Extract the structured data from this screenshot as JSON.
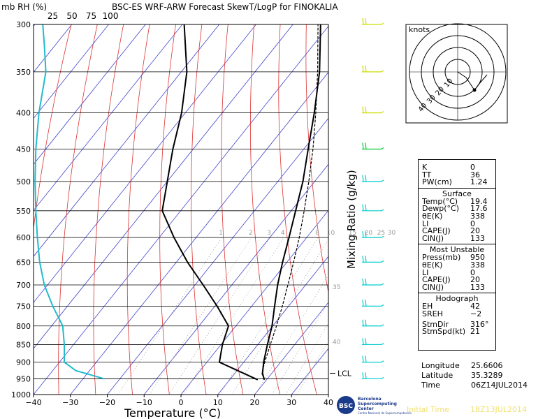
{
  "chart_data": {
    "type": "skewt",
    "title": "BSC-ES WRF-ARW Forecast SkewT/LogP for FINOKALIA",
    "left_header": "mb RH (%)",
    "rh_ticks": [
      "25",
      "50",
      "75",
      "100"
    ],
    "xlabel": "Temperature (°C)",
    "ylabel": "Mixing Ratio (g/kg)",
    "x_ticks": [
      "−40",
      "−30",
      "−20",
      "−10",
      "0",
      "10",
      "20",
      "30",
      "40"
    ],
    "pressure_levels": [
      300,
      350,
      400,
      450,
      500,
      550,
      600,
      650,
      700,
      750,
      800,
      850,
      900,
      950,
      1000
    ],
    "pressure_labels": [
      "300",
      "350",
      "400",
      "450",
      "500",
      "550",
      "600",
      "650",
      "700",
      "750",
      "800",
      "850",
      "900",
      "950",
      "1000"
    ],
    "mixing_ratio_labels": [
      "1",
      "2",
      "3",
      "4",
      "8",
      "10",
      "15",
      "20",
      "25",
      "30"
    ],
    "theta_e_labels": [
      {
        "text": "35",
        "pressure": 705
      },
      {
        "text": "40",
        "pressure": 842
      }
    ],
    "lcl_label": "LCL",
    "lcl_pressure": 933,
    "temperature_profile": [
      {
        "p": 953,
        "t": 19.4
      },
      {
        "p": 933,
        "t": 17.5
      },
      {
        "p": 900,
        "t": 15.4
      },
      {
        "p": 850,
        "t": 12.6
      },
      {
        "p": 800,
        "t": 9.8
      },
      {
        "p": 750,
        "t": 6.2
      },
      {
        "p": 700,
        "t": 2.4
      },
      {
        "p": 650,
        "t": -1.2
      },
      {
        "p": 600,
        "t": -4.8
      },
      {
        "p": 550,
        "t": -8.8
      },
      {
        "p": 500,
        "t": -13.2
      },
      {
        "p": 450,
        "t": -18.8
      },
      {
        "p": 400,
        "t": -25.0
      },
      {
        "p": 350,
        "t": -32.5
      },
      {
        "p": 300,
        "t": -42.5
      }
    ],
    "dewpoint_profile": [
      {
        "p": 953,
        "t": 17.6
      },
      {
        "p": 900,
        "t": 3.4
      },
      {
        "p": 850,
        "t": 0.4
      },
      {
        "p": 800,
        "t": -2.0
      },
      {
        "p": 750,
        "t": -9.4
      },
      {
        "p": 700,
        "t": -17.8
      },
      {
        "p": 650,
        "t": -27.0
      },
      {
        "p": 600,
        "t": -36.0
      },
      {
        "p": 550,
        "t": -45.0
      },
      {
        "p": 500,
        "t": -50.0
      },
      {
        "p": 450,
        "t": -55.5
      },
      {
        "p": 400,
        "t": -61.0
      },
      {
        "p": 350,
        "t": -68.5
      },
      {
        "p": 300,
        "t": -79.5
      }
    ],
    "parcel_profile": [
      {
        "p": 953,
        "t": 19.4
      },
      {
        "p": 933,
        "t": 17.3
      },
      {
        "p": 900,
        "t": 15.7
      },
      {
        "p": 850,
        "t": 13.4
      },
      {
        "p": 800,
        "t": 11.0
      },
      {
        "p": 750,
        "t": 8.3
      },
      {
        "p": 700,
        "t": 5.2
      },
      {
        "p": 650,
        "t": 1.8
      },
      {
        "p": 600,
        "t": -2.0
      },
      {
        "p": 550,
        "t": -6.5
      },
      {
        "p": 500,
        "t": -11.6
      },
      {
        "p": 450,
        "t": -17.5
      },
      {
        "p": 400,
        "t": -24.6
      },
      {
        "p": 350,
        "t": -33.0
      },
      {
        "p": 300,
        "t": -43.2
      }
    ],
    "rh_profile": [
      {
        "p": 950,
        "rh": 92
      },
      {
        "p": 925,
        "rh": 55
      },
      {
        "p": 900,
        "rh": 40
      },
      {
        "p": 850,
        "rh": 40
      },
      {
        "p": 800,
        "rh": 38
      },
      {
        "p": 750,
        "rh": 25
      },
      {
        "p": 700,
        "rh": 14
      },
      {
        "p": 650,
        "rh": 8
      },
      {
        "p": 600,
        "rh": 5
      },
      {
        "p": 550,
        "rh": 3
      },
      {
        "p": 500,
        "rh": 2
      },
      {
        "p": 450,
        "rh": 3
      },
      {
        "p": 400,
        "rh": 7
      },
      {
        "p": 350,
        "rh": 16
      },
      {
        "p": 320,
        "rh": 14
      },
      {
        "p": 300,
        "rh": 12
      }
    ],
    "rh_xlim": [
      0,
      100
    ],
    "wind_barbs": [
      {
        "p": 300,
        "color": "#ccdd00"
      },
      {
        "p": 350,
        "color": "#ccdd00"
      },
      {
        "p": 400,
        "color": "#ccdd00"
      },
      {
        "p": 450,
        "color": "#00cc33"
      },
      {
        "p": 500,
        "color": "#00cccc"
      },
      {
        "p": 550,
        "color": "#00cccc"
      },
      {
        "p": 600,
        "color": "#00cccc"
      },
      {
        "p": 650,
        "color": "#00cccc"
      },
      {
        "p": 700,
        "color": "#00cccc"
      },
      {
        "p": 750,
        "color": "#00cccc"
      },
      {
        "p": 800,
        "color": "#00cccc"
      },
      {
        "p": 850,
        "color": "#00cccc"
      },
      {
        "p": 900,
        "color": "#00cccc"
      },
      {
        "p": 950,
        "color": "#00cccc"
      }
    ],
    "xlim": [
      -40,
      40
    ],
    "ylim": [
      1000,
      300
    ],
    "y_scale": "log",
    "hodograph": {
      "title": "knots",
      "ring_labels": [
        "10",
        "20",
        "30",
        "40"
      ]
    }
  },
  "indices": {
    "k_label": "K",
    "k_value": "0",
    "tt_label": "TT",
    "tt_value": "36",
    "pw_label": "PW(cm)",
    "pw_value": "1.24"
  },
  "surface": {
    "title": "Surface",
    "temp_label": "Temp(°C)",
    "temp_value": "19.4",
    "dewp_label": "Dewp(°C)",
    "dewp_value": "17.6",
    "thetae_label": "θE(K)",
    "thetae_value": "338",
    "li_label": "LI",
    "li_value": "0",
    "cape_label": "CAPE(J)",
    "cape_value": "20",
    "cin_label": "CIN(J)",
    "cin_value": "133"
  },
  "most_unstable": {
    "title": "Most Unstable",
    "press_label": "Press(mb)",
    "press_value": "950",
    "thetae_label": "θE(K)",
    "thetae_value": "338",
    "li_label": "LI",
    "li_value": "0",
    "cape_label": "CAPE(J)",
    "cape_value": "20",
    "cin_label": "CIN(J)",
    "cin_value": "133"
  },
  "hodograph_stats": {
    "title": "Hodograph",
    "eh_label": "EH",
    "eh_value": "42",
    "sreh_label": "SREH",
    "sreh_value": "−2",
    "stmdir_label": "StmDir",
    "stmdir_value": "316°",
    "stmspd_label": "StmSpd(kt)",
    "stmspd_value": "21"
  },
  "location": {
    "lon_label": "Longitude",
    "lon_value": "25.6606",
    "lat_label": "Latitude",
    "lat_value": "35.3289",
    "time_label": "Time",
    "time_value": "06Z14JUL2014"
  },
  "footer": {
    "logo_short": "BSC",
    "logo_line1": "Barcelona",
    "logo_line2": "Supercomputing",
    "logo_line3": "Center",
    "logo_line4": "Centro Nacional de Supercomputación",
    "init_label": "Initial Time",
    "init_value": "18Z13JUL2014"
  },
  "colors": {
    "isotherm": "#4444cc",
    "dry_adiabat": "#dd3333",
    "mixing_ratio": "#999999",
    "rh_line": "#22bbcc",
    "profile": "#000000"
  }
}
